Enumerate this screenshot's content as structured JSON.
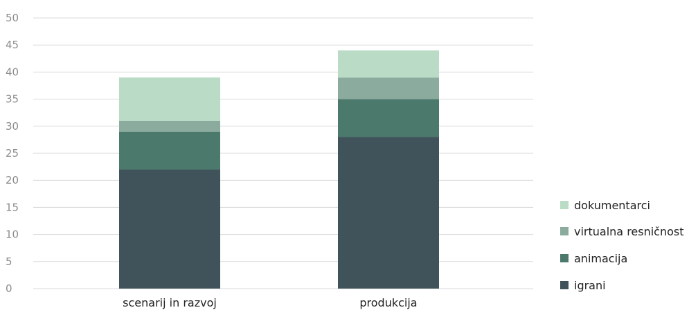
{
  "chart_data": {
    "type": "bar",
    "stacked": true,
    "categories": [
      "scenarij in razvoj",
      "produkcija"
    ],
    "series": [
      {
        "name": "igrani",
        "values": [
          22,
          28
        ],
        "color": "#41535a"
      },
      {
        "name": "animacija",
        "values": [
          7,
          7
        ],
        "color": "#4b7a6c"
      },
      {
        "name": "virtualna resničnost",
        "values": [
          2,
          4
        ],
        "color": "#8aab9d"
      },
      {
        "name": "dokumentarci",
        "values": [
          8,
          5
        ],
        "color": "#badbc5"
      }
    ],
    "ylim": [
      0,
      50
    ],
    "yticks": [
      0,
      5,
      10,
      15,
      20,
      25,
      30,
      35,
      40,
      45,
      50
    ],
    "grid": true,
    "legend": "right"
  }
}
